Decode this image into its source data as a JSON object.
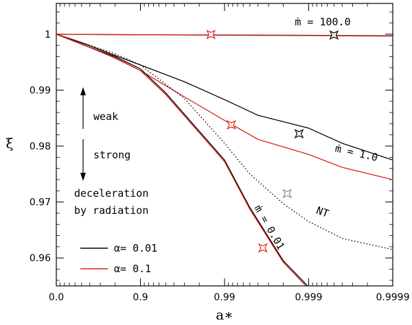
{
  "chart_data": {
    "type": "line",
    "title": "",
    "xlabel": "a∗",
    "ylabel": "ξ",
    "xaxis_scale": "log(1 - a)",
    "x_ticks": [
      0.0,
      0.9,
      0.99,
      0.999,
      0.9999
    ],
    "x_tick_labels": [
      "0.0",
      "0.9",
      "0.99",
      "0.999",
      "0.9999"
    ],
    "y_ticks": [
      0.96,
      0.97,
      0.98,
      0.99,
      1.0
    ],
    "y_tick_labels": [
      "0.96",
      "0.97",
      "0.98",
      "0.99",
      "1"
    ],
    "xlim": [
      0.0,
      0.9999
    ],
    "ylim": [
      0.955,
      1.0055
    ],
    "series": [
      {
        "name": "m100_a001",
        "mdot": "100.0",
        "alpha": "0.01",
        "color": "#000000",
        "dash": "solid",
        "x": [
          0.0,
          0.5,
          0.9,
          0.99,
          0.999,
          0.9999
        ],
        "values": [
          1.0,
          0.99995,
          0.9999,
          0.99985,
          0.9998,
          0.9997
        ]
      },
      {
        "name": "m100_a01",
        "mdot": "100.0",
        "alpha": "0.1",
        "color": "#e0201b",
        "dash": "solid",
        "x": [
          0.0,
          0.5,
          0.9,
          0.99,
          0.999,
          0.9999
        ],
        "values": [
          1.0,
          0.99995,
          0.9999,
          0.9998,
          0.99975,
          0.99965
        ]
      },
      {
        "name": "m1_a001",
        "mdot": "1.0",
        "alpha": "0.01",
        "color": "#000000",
        "dash": "solid",
        "x": [
          0.0,
          0.5,
          0.8,
          0.9,
          0.97,
          0.99,
          0.996,
          0.999,
          0.9996,
          0.9999
        ],
        "values": [
          1.0,
          0.9985,
          0.9962,
          0.9945,
          0.9915,
          0.9883,
          0.9855,
          0.9832,
          0.9805,
          0.9775
        ]
      },
      {
        "name": "m1_a01",
        "mdot": "1.0",
        "alpha": "0.1",
        "color": "#e0201b",
        "dash": "solid",
        "x": [
          0.0,
          0.5,
          0.8,
          0.9,
          0.97,
          0.99,
          0.996,
          0.999,
          0.9996,
          0.9999
        ],
        "values": [
          1.0,
          0.9983,
          0.9957,
          0.9935,
          0.9888,
          0.9846,
          0.9812,
          0.9785,
          0.9762,
          0.974
        ]
      },
      {
        "name": "NT",
        "color": "#000000",
        "dash": "dotted",
        "x": [
          0.0,
          0.5,
          0.8,
          0.9,
          0.97,
          0.99,
          0.995,
          0.998,
          0.999,
          0.9996,
          0.9999
        ],
        "values": [
          1.0,
          0.9985,
          0.9965,
          0.9945,
          0.9885,
          0.9805,
          0.975,
          0.9697,
          0.9665,
          0.9635,
          0.9615
        ]
      },
      {
        "name": "m001_a001",
        "mdot": "0.01",
        "alpha": "0.01",
        "color": "#000000",
        "dash": "solid",
        "x": [
          0.0,
          0.5,
          0.8,
          0.9,
          0.95,
          0.99,
          0.995,
          0.998,
          0.999
        ],
        "values": [
          1.0,
          0.9982,
          0.996,
          0.9938,
          0.9895,
          0.9775,
          0.969,
          0.9595,
          0.9548
        ]
      },
      {
        "name": "m001_a01",
        "mdot": "0.01",
        "alpha": "0.1",
        "color": "#e0201b",
        "dash": "solid",
        "x": [
          0.0,
          0.5,
          0.8,
          0.9,
          0.95,
          0.99,
          0.995,
          0.998,
          0.999
        ],
        "values": [
          1.0,
          0.9982,
          0.9958,
          0.9935,
          0.9892,
          0.9772,
          0.9687,
          0.9592,
          0.9545
        ]
      }
    ],
    "stars": [
      {
        "name": "star-m100-red",
        "color": "#e0201b",
        "x": 0.9855,
        "y": 0.99995
      },
      {
        "name": "star-m100-black",
        "color": "#000000",
        "x": 0.9995,
        "y": 0.99985
      },
      {
        "name": "star-m1-red",
        "color": "#e0201b",
        "x": 0.9917,
        "y": 0.9838
      },
      {
        "name": "star-m1-black",
        "color": "#000000",
        "x": 0.9987,
        "y": 0.9822
      },
      {
        "name": "star-nt",
        "color": "#888888",
        "x": 0.9982,
        "y": 0.9715
      },
      {
        "name": "star-m001",
        "color": "#e0201b",
        "x": 0.9965,
        "y": 0.9618
      }
    ],
    "curve_labels": [
      {
        "name": "label-m100",
        "text": "ṁ = 100.0"
      },
      {
        "name": "label-m1",
        "text": "ṁ = 1.0"
      },
      {
        "name": "label-nt",
        "text": "NT"
      },
      {
        "name": "label-m001",
        "text": "ṁ = 0.01"
      }
    ],
    "annotations": {
      "weak": "weak",
      "strong": "strong",
      "deceleration_line1": "deceleration",
      "deceleration_line2": "by radiation"
    },
    "legend": {
      "placement": "bottom-left",
      "entries": [
        {
          "label": "α= 0.01",
          "color": "#000000"
        },
        {
          "label": "α= 0.1",
          "color": "#e0201b"
        }
      ]
    }
  }
}
